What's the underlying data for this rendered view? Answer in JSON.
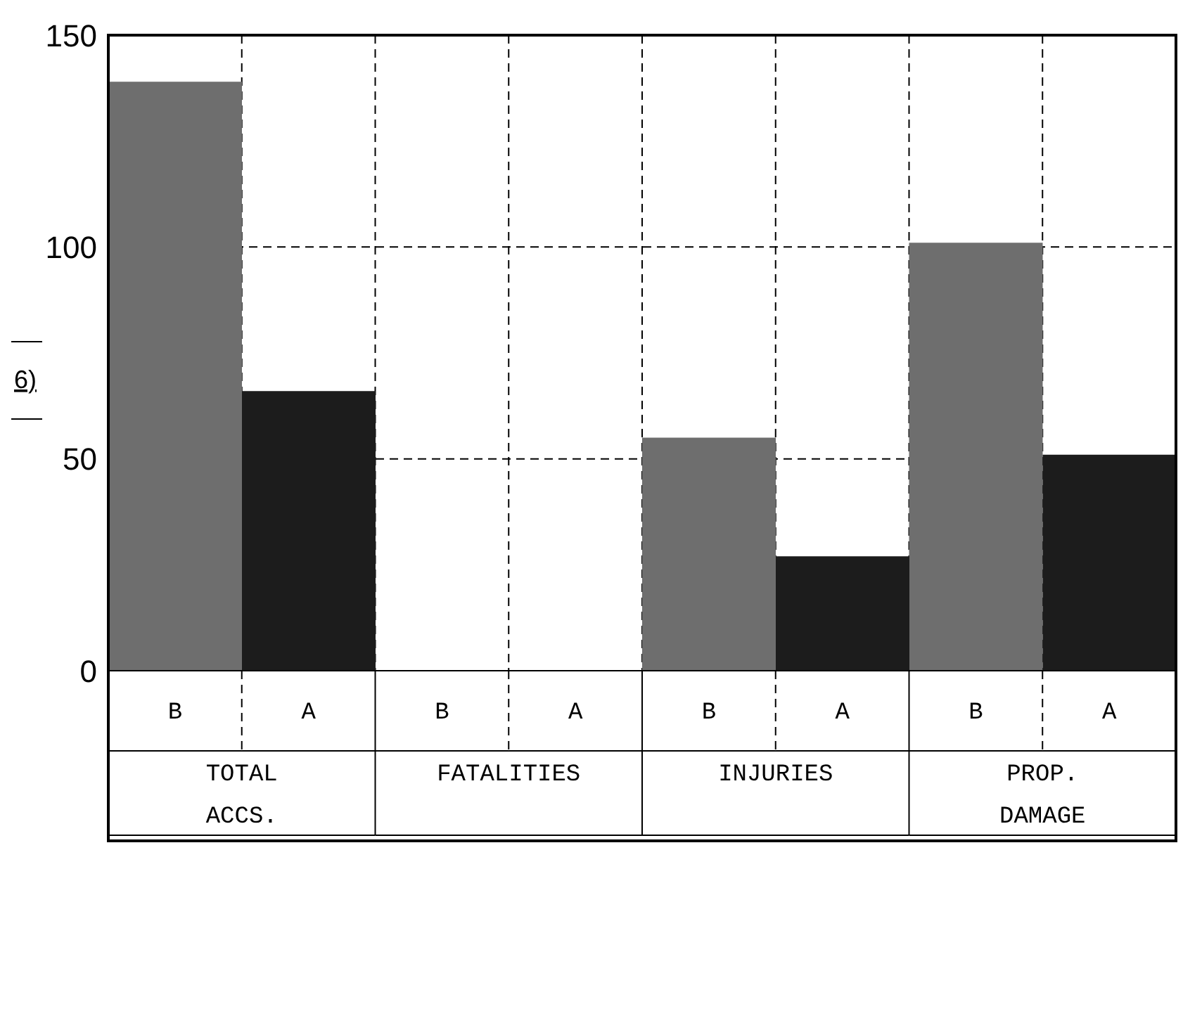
{
  "chart_data": {
    "type": "bar",
    "ylabel": "6)",
    "categories": [
      "TOTAL ACCS.",
      "FATALITIES",
      "INJURIES",
      "PROP. DAMAGE"
    ],
    "series": [
      {
        "name": "B",
        "color": "#6e6e6e",
        "values": [
          139,
          0,
          55,
          101
        ]
      },
      {
        "name": "A",
        "color": "#1c1c1c",
        "values": [
          66,
          0,
          27,
          51
        ]
      }
    ],
    "ylim": [
      0,
      150
    ],
    "yticks": [
      0,
      50,
      100,
      150
    ],
    "grid": true,
    "line_style": "dashed"
  }
}
